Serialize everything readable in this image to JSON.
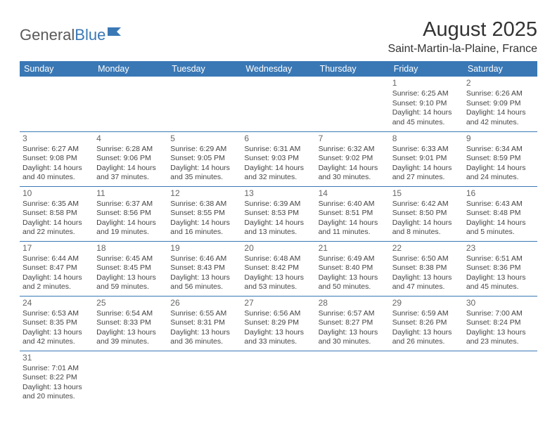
{
  "logo": {
    "word1": "General",
    "word2": "Blue"
  },
  "header": {
    "title": "August 2025",
    "location": "Saint-Martin-la-Plaine, France"
  },
  "colors": {
    "header_bg": "#3a78b5",
    "header_text": "#ffffff",
    "border": "#3a78b5",
    "body_text": "#444444",
    "title_text": "#333333",
    "page_bg": "#ffffff"
  },
  "days": [
    "Sunday",
    "Monday",
    "Tuesday",
    "Wednesday",
    "Thursday",
    "Friday",
    "Saturday"
  ],
  "weeks": [
    [
      null,
      null,
      null,
      null,
      null,
      {
        "num": "1",
        "sunrise": "Sunrise: 6:25 AM",
        "sunset": "Sunset: 9:10 PM",
        "daylight": "Daylight: 14 hours and 45 minutes."
      },
      {
        "num": "2",
        "sunrise": "Sunrise: 6:26 AM",
        "sunset": "Sunset: 9:09 PM",
        "daylight": "Daylight: 14 hours and 42 minutes."
      }
    ],
    [
      {
        "num": "3",
        "sunrise": "Sunrise: 6:27 AM",
        "sunset": "Sunset: 9:08 PM",
        "daylight": "Daylight: 14 hours and 40 minutes."
      },
      {
        "num": "4",
        "sunrise": "Sunrise: 6:28 AM",
        "sunset": "Sunset: 9:06 PM",
        "daylight": "Daylight: 14 hours and 37 minutes."
      },
      {
        "num": "5",
        "sunrise": "Sunrise: 6:29 AM",
        "sunset": "Sunset: 9:05 PM",
        "daylight": "Daylight: 14 hours and 35 minutes."
      },
      {
        "num": "6",
        "sunrise": "Sunrise: 6:31 AM",
        "sunset": "Sunset: 9:03 PM",
        "daylight": "Daylight: 14 hours and 32 minutes."
      },
      {
        "num": "7",
        "sunrise": "Sunrise: 6:32 AM",
        "sunset": "Sunset: 9:02 PM",
        "daylight": "Daylight: 14 hours and 30 minutes."
      },
      {
        "num": "8",
        "sunrise": "Sunrise: 6:33 AM",
        "sunset": "Sunset: 9:01 PM",
        "daylight": "Daylight: 14 hours and 27 minutes."
      },
      {
        "num": "9",
        "sunrise": "Sunrise: 6:34 AM",
        "sunset": "Sunset: 8:59 PM",
        "daylight": "Daylight: 14 hours and 24 minutes."
      }
    ],
    [
      {
        "num": "10",
        "sunrise": "Sunrise: 6:35 AM",
        "sunset": "Sunset: 8:58 PM",
        "daylight": "Daylight: 14 hours and 22 minutes."
      },
      {
        "num": "11",
        "sunrise": "Sunrise: 6:37 AM",
        "sunset": "Sunset: 8:56 PM",
        "daylight": "Daylight: 14 hours and 19 minutes."
      },
      {
        "num": "12",
        "sunrise": "Sunrise: 6:38 AM",
        "sunset": "Sunset: 8:55 PM",
        "daylight": "Daylight: 14 hours and 16 minutes."
      },
      {
        "num": "13",
        "sunrise": "Sunrise: 6:39 AM",
        "sunset": "Sunset: 8:53 PM",
        "daylight": "Daylight: 14 hours and 13 minutes."
      },
      {
        "num": "14",
        "sunrise": "Sunrise: 6:40 AM",
        "sunset": "Sunset: 8:51 PM",
        "daylight": "Daylight: 14 hours and 11 minutes."
      },
      {
        "num": "15",
        "sunrise": "Sunrise: 6:42 AM",
        "sunset": "Sunset: 8:50 PM",
        "daylight": "Daylight: 14 hours and 8 minutes."
      },
      {
        "num": "16",
        "sunrise": "Sunrise: 6:43 AM",
        "sunset": "Sunset: 8:48 PM",
        "daylight": "Daylight: 14 hours and 5 minutes."
      }
    ],
    [
      {
        "num": "17",
        "sunrise": "Sunrise: 6:44 AM",
        "sunset": "Sunset: 8:47 PM",
        "daylight": "Daylight: 14 hours and 2 minutes."
      },
      {
        "num": "18",
        "sunrise": "Sunrise: 6:45 AM",
        "sunset": "Sunset: 8:45 PM",
        "daylight": "Daylight: 13 hours and 59 minutes."
      },
      {
        "num": "19",
        "sunrise": "Sunrise: 6:46 AM",
        "sunset": "Sunset: 8:43 PM",
        "daylight": "Daylight: 13 hours and 56 minutes."
      },
      {
        "num": "20",
        "sunrise": "Sunrise: 6:48 AM",
        "sunset": "Sunset: 8:42 PM",
        "daylight": "Daylight: 13 hours and 53 minutes."
      },
      {
        "num": "21",
        "sunrise": "Sunrise: 6:49 AM",
        "sunset": "Sunset: 8:40 PM",
        "daylight": "Daylight: 13 hours and 50 minutes."
      },
      {
        "num": "22",
        "sunrise": "Sunrise: 6:50 AM",
        "sunset": "Sunset: 8:38 PM",
        "daylight": "Daylight: 13 hours and 47 minutes."
      },
      {
        "num": "23",
        "sunrise": "Sunrise: 6:51 AM",
        "sunset": "Sunset: 8:36 PM",
        "daylight": "Daylight: 13 hours and 45 minutes."
      }
    ],
    [
      {
        "num": "24",
        "sunrise": "Sunrise: 6:53 AM",
        "sunset": "Sunset: 8:35 PM",
        "daylight": "Daylight: 13 hours and 42 minutes."
      },
      {
        "num": "25",
        "sunrise": "Sunrise: 6:54 AM",
        "sunset": "Sunset: 8:33 PM",
        "daylight": "Daylight: 13 hours and 39 minutes."
      },
      {
        "num": "26",
        "sunrise": "Sunrise: 6:55 AM",
        "sunset": "Sunset: 8:31 PM",
        "daylight": "Daylight: 13 hours and 36 minutes."
      },
      {
        "num": "27",
        "sunrise": "Sunrise: 6:56 AM",
        "sunset": "Sunset: 8:29 PM",
        "daylight": "Daylight: 13 hours and 33 minutes."
      },
      {
        "num": "28",
        "sunrise": "Sunrise: 6:57 AM",
        "sunset": "Sunset: 8:27 PM",
        "daylight": "Daylight: 13 hours and 30 minutes."
      },
      {
        "num": "29",
        "sunrise": "Sunrise: 6:59 AM",
        "sunset": "Sunset: 8:26 PM",
        "daylight": "Daylight: 13 hours and 26 minutes."
      },
      {
        "num": "30",
        "sunrise": "Sunrise: 7:00 AM",
        "sunset": "Sunset: 8:24 PM",
        "daylight": "Daylight: 13 hours and 23 minutes."
      }
    ],
    [
      {
        "num": "31",
        "sunrise": "Sunrise: 7:01 AM",
        "sunset": "Sunset: 8:22 PM",
        "daylight": "Daylight: 13 hours and 20 minutes."
      },
      null,
      null,
      null,
      null,
      null,
      null
    ]
  ]
}
